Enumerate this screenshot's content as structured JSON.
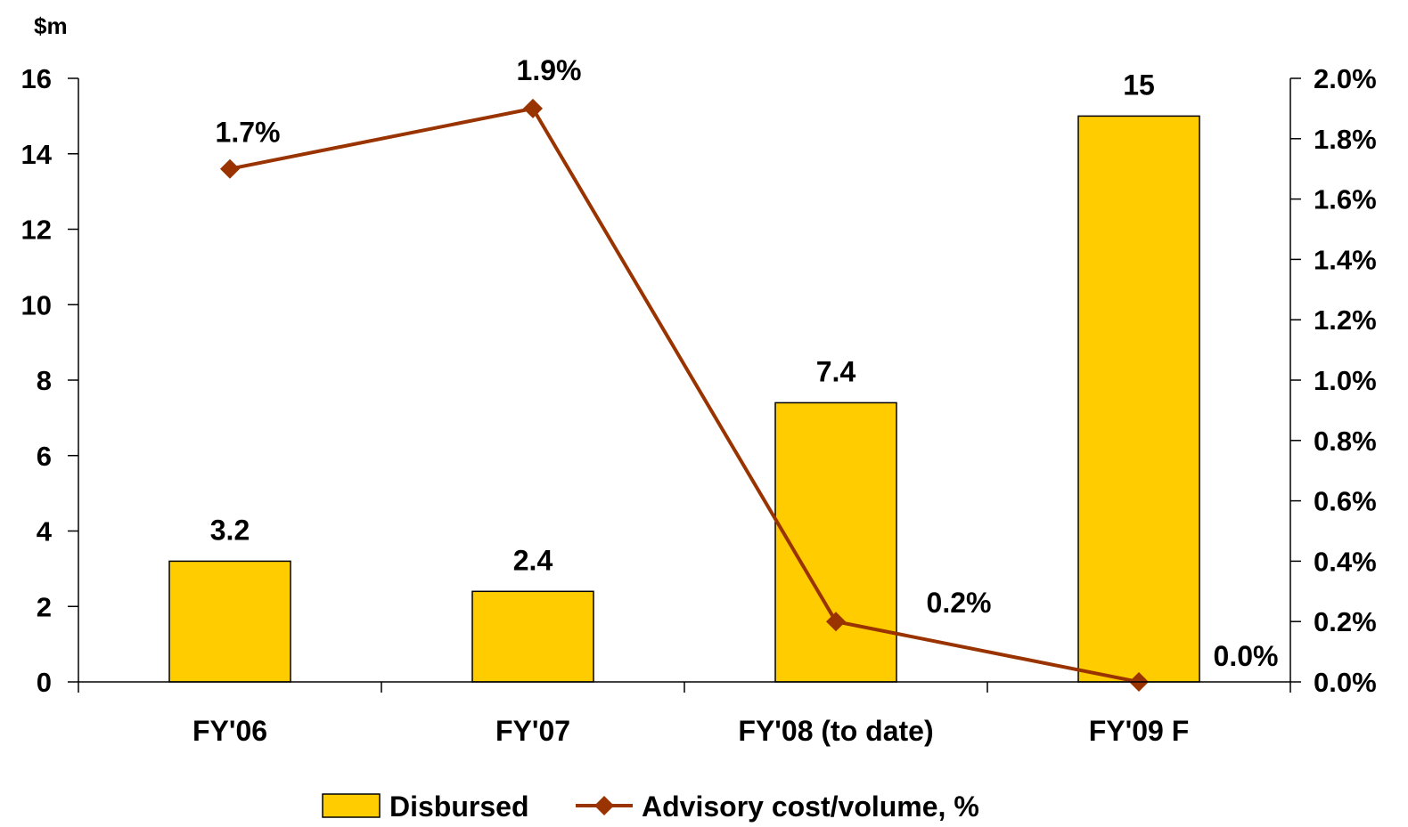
{
  "chart_data": {
    "type": "bar",
    "y_unit": "$m",
    "categories": [
      "FY'06",
      "FY'07",
      "FY'08 (to date)",
      "FY'09 F"
    ],
    "series": [
      {
        "name": "Disbursed",
        "type": "bar",
        "axis": "left",
        "values": [
          3.2,
          2.4,
          7.4,
          15
        ],
        "labels": [
          "3.2",
          "2.4",
          "7.4",
          "15"
        ],
        "color": "#FFCC00"
      },
      {
        "name": "Advisory cost/volume, %",
        "type": "line",
        "axis": "right",
        "values": [
          1.7,
          1.9,
          0.2,
          0.0
        ],
        "labels": [
          "1.7%",
          "1.9%",
          "0.2%",
          "0.0%"
        ],
        "color": "#993300"
      }
    ],
    "y_left": {
      "min": 0,
      "max": 16,
      "step": 2,
      "ticks": [
        "0",
        "2",
        "4",
        "6",
        "8",
        "10",
        "12",
        "14",
        "16"
      ]
    },
    "y_right": {
      "min": 0,
      "max": 2.0,
      "step": 0.2,
      "ticks": [
        "0.0%",
        "0.2%",
        "0.4%",
        "0.6%",
        "0.8%",
        "1.0%",
        "1.2%",
        "1.4%",
        "1.6%",
        "1.8%",
        "2.0%"
      ]
    },
    "grid": false,
    "legend": "bottom-center"
  }
}
